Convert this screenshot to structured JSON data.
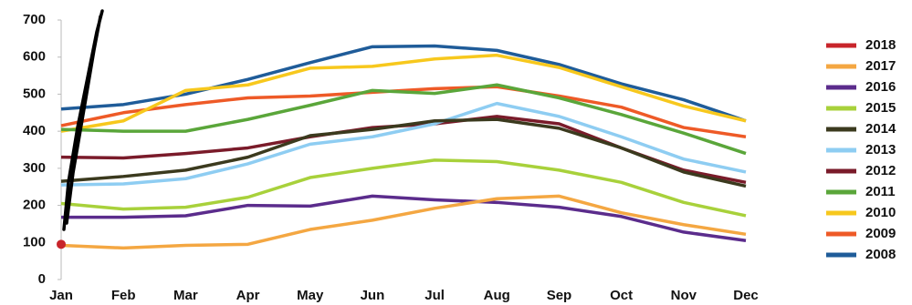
{
  "chart_data": {
    "type": "line",
    "categories": [
      "Jan",
      "Feb",
      "Mar",
      "Apr",
      "May",
      "Jun",
      "Jul",
      "Aug",
      "Sep",
      "Oct",
      "Nov",
      "Dec"
    ],
    "ylim": [
      0,
      700
    ],
    "yticks": [
      0,
      100,
      200,
      300,
      400,
      500,
      600,
      700
    ],
    "grid": false,
    "legend": "right",
    "series": [
      {
        "name": "2018",
        "color": "#c8252b",
        "values": [
          95,
          null,
          null,
          null,
          null,
          null,
          null,
          null,
          null,
          null,
          null,
          null
        ]
      },
      {
        "name": "2017",
        "color": "#f4a742",
        "values": [
          92,
          85,
          92,
          95,
          135,
          160,
          192,
          218,
          225,
          180,
          148,
          122
        ]
      },
      {
        "name": "2016",
        "color": "#5b2c8c",
        "values": [
          168,
          168,
          172,
          200,
          198,
          225,
          215,
          208,
          195,
          170,
          128,
          105
        ]
      },
      {
        "name": "2015",
        "color": "#a8d13b",
        "values": [
          205,
          190,
          195,
          222,
          275,
          300,
          322,
          318,
          295,
          262,
          208,
          172
        ]
      },
      {
        "name": "2014",
        "color": "#3b3a1e",
        "values": [
          265,
          278,
          295,
          330,
          388,
          405,
          428,
          432,
          408,
          355,
          290,
          252
        ]
      },
      {
        "name": "2013",
        "color": "#8ecdf2",
        "values": [
          255,
          258,
          272,
          312,
          365,
          385,
          420,
          475,
          440,
          385,
          325,
          290
        ]
      },
      {
        "name": "2012",
        "color": "#7a1b2a",
        "values": [
          330,
          328,
          340,
          355,
          385,
          410,
          420,
          440,
          420,
          355,
          295,
          262
        ]
      },
      {
        "name": "2011",
        "color": "#5aa63a",
        "values": [
          405,
          400,
          400,
          432,
          470,
          510,
          502,
          525,
          490,
          445,
          395,
          340
        ]
      },
      {
        "name": "2010",
        "color": "#f7c81d",
        "values": [
          400,
          428,
          510,
          525,
          570,
          575,
          595,
          605,
          572,
          520,
          468,
          428
        ]
      },
      {
        "name": "2009",
        "color": "#ee5a27",
        "values": [
          415,
          450,
          472,
          490,
          495,
          505,
          515,
          520,
          495,
          465,
          410,
          385
        ]
      },
      {
        "name": "2008",
        "color": "#1f5c99",
        "values": [
          460,
          472,
          500,
          540,
          585,
          628,
          630,
          618,
          580,
          528,
          485,
          428
        ]
      }
    ]
  }
}
